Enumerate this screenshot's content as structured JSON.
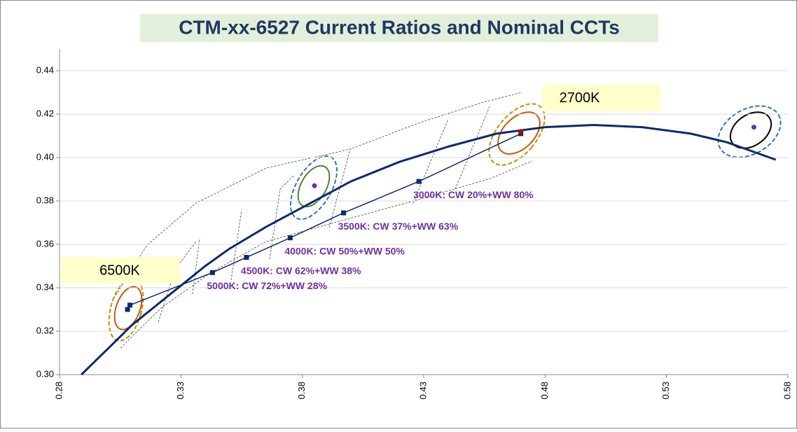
{
  "chart_data": {
    "type": "line",
    "title": "CTM-xx-6527 Current Ratios and Nominal CCTs",
    "xlim": [
      0.28,
      0.58
    ],
    "xticks": [
      0.28,
      0.33,
      0.38,
      0.43,
      0.48,
      0.53,
      0.58
    ],
    "ylim": [
      0.3,
      0.45
    ],
    "yticks": [
      {
        "value": 0.3,
        "label": "0.30"
      },
      0.32,
      0.34,
      0.36,
      0.38,
      {
        "value": 0.4,
        "label": "0.40"
      },
      0.42,
      0.44
    ],
    "grid": true,
    "series": [
      {
        "color": "#0d2a6b",
        "width": 3,
        "x": [
          0.289,
          0.3,
          0.31,
          0.32,
          0.33,
          0.34,
          0.35,
          0.365,
          0.38,
          0.4,
          0.42,
          0.44,
          0.46,
          0.48,
          0.5,
          0.52,
          0.54,
          0.555,
          0.575
        ],
        "values": [
          0.3,
          0.312,
          0.323,
          0.332,
          0.341,
          0.35,
          0.358,
          0.368,
          0.377,
          0.389,
          0.398,
          0.405,
          0.411,
          0.414,
          0.415,
          0.414,
          0.411,
          0.407,
          0.399
        ]
      },
      {
        "color": "#0d2a6b",
        "width": 1.5,
        "marker": "square",
        "x": [
          0.308,
          0.309,
          0.343,
          0.357,
          0.375,
          0.397,
          0.428,
          0.47
        ],
        "values": [
          0.33,
          0.332,
          0.347,
          0.354,
          0.363,
          0.3745,
          0.389,
          0.411
        ],
        "labels": [
          "6500K",
          null,
          "5000K: CW 72%+WW 28%",
          "4500K: CW 62%+WW 38%",
          "4000K: CW 50%+WW 50%",
          "3500K: CW 37%+WW 63%",
          "3000K: CW 20%+WW 80%",
          "2700K"
        ]
      },
      {
        "color": "#7030a0",
        "marker": "dot",
        "x": [
          0.385,
          0.566
        ],
        "values": [
          0.387,
          0.414
        ]
      },
      {
        "color": "#c00000",
        "marker": "dot",
        "x": [
          0.47
        ],
        "values": [
          0.412
        ]
      }
    ]
  }
}
